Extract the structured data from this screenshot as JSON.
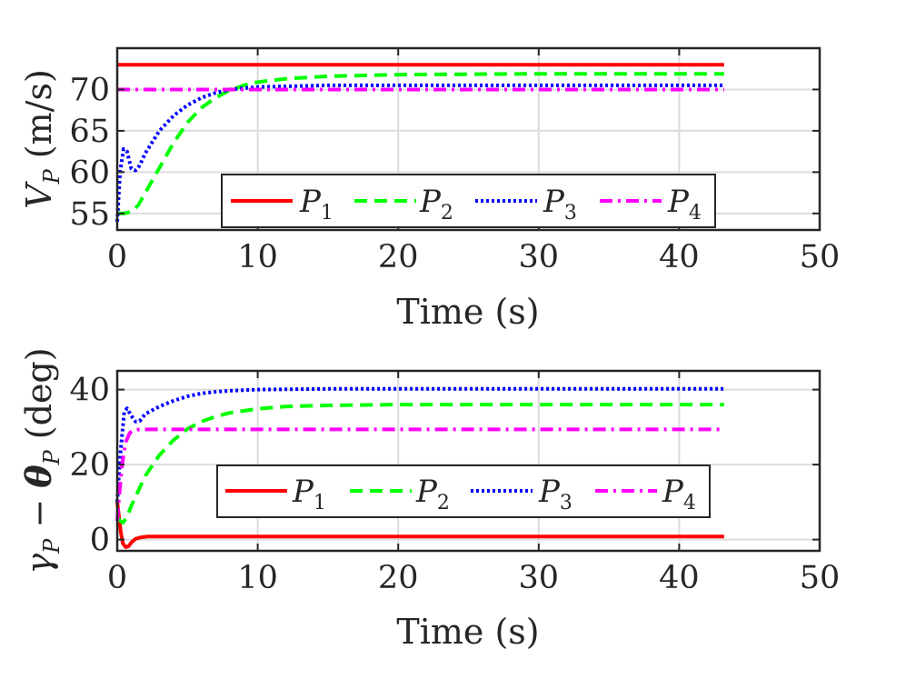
{
  "colors": {
    "P1": "#ff0000",
    "P2": "#00ff00",
    "P3": "#0000ff",
    "P4": "#ff00ff",
    "axis": "#262626",
    "grid": "#dcdcdc"
  },
  "chart_data": [
    {
      "type": "line",
      "xlabel": "Time (s)",
      "ylabel": "V_P (m/s)",
      "ylabel_parts": {
        "main": "V",
        "sub": "P",
        "unit": "(m/s)"
      },
      "xlim": [
        0,
        50
      ],
      "ylim": [
        53,
        75
      ],
      "xticks": [
        0,
        10,
        20,
        30,
        40,
        50
      ],
      "yticks": [
        55,
        60,
        65,
        70
      ],
      "grid": true,
      "legend_placement": "bottom-center",
      "series": [
        {
          "name": "P1",
          "label_main": "P",
          "label_sub": "1",
          "color": "#ff0000",
          "dash": "solid",
          "x": [
            0,
            43.2
          ],
          "y": [
            73,
            73
          ]
        },
        {
          "name": "P2",
          "label_main": "P",
          "label_sub": "2",
          "color": "#00ff00",
          "dash": "dashed",
          "x": [
            0,
            0.5,
            1,
            1.5,
            2,
            3,
            4,
            5,
            6,
            7,
            8,
            9,
            10,
            12,
            15,
            20,
            30,
            43.2
          ],
          "y": [
            55,
            55,
            55.2,
            56,
            57.5,
            60.5,
            63.5,
            66,
            67.8,
            69,
            69.9,
            70.5,
            70.9,
            71.3,
            71.6,
            71.8,
            71.9,
            71.9
          ]
        },
        {
          "name": "P3",
          "label_main": "P",
          "label_sub": "3",
          "color": "#0000ff",
          "dash": "dotted",
          "x": [
            0,
            0.2,
            0.45,
            0.7,
            1,
            1.3,
            1.6,
            2,
            3,
            4,
            5,
            6,
            7,
            8,
            10,
            15,
            20,
            43.2
          ],
          "y": [
            54,
            60,
            62.8,
            62.5,
            60.4,
            60.2,
            60.8,
            62.3,
            65,
            66.8,
            68.1,
            69,
            69.6,
            70,
            70.3,
            70.5,
            70.5,
            70.5
          ]
        },
        {
          "name": "P4",
          "label_main": "P",
          "label_sub": "4",
          "color": "#ff00ff",
          "dash": "dashdot",
          "x": [
            0,
            43.2
          ],
          "y": [
            70,
            70
          ]
        }
      ]
    },
    {
      "type": "line",
      "xlabel": "Time (s)",
      "ylabel": "γ_P − θ_P (deg)",
      "ylabel_parts": {
        "g": "γ",
        "gsub": "P",
        "op": " − ",
        "t": "θ",
        "tsub": "P",
        "unit": "(deg)"
      },
      "xlim": [
        0,
        50
      ],
      "ylim": [
        -3,
        45
      ],
      "xticks": [
        0,
        10,
        20,
        30,
        40,
        50
      ],
      "yticks": [
        0,
        20,
        40
      ],
      "grid": true,
      "legend_placement": "center",
      "series": [
        {
          "name": "P1",
          "label_main": "P",
          "label_sub": "1",
          "color": "#ff0000",
          "dash": "solid",
          "x": [
            0,
            0.1,
            0.25,
            0.4,
            0.6,
            0.8,
            1.0,
            1.3,
            1.7,
            2.2,
            3,
            5,
            10,
            43.2
          ],
          "y": [
            10,
            7,
            2,
            -1,
            -2,
            -1.8,
            -0.8,
            0.2,
            0.6,
            0.8,
            0.8,
            0.8,
            0.8,
            0.8
          ]
        },
        {
          "name": "P2",
          "label_main": "P",
          "label_sub": "2",
          "color": "#00ff00",
          "dash": "dashed",
          "x": [
            0,
            0.2,
            0.4,
            0.7,
            1,
            1.5,
            2,
            3,
            4,
            5,
            6,
            7,
            8,
            10,
            12,
            15,
            20,
            43.2
          ],
          "y": [
            6,
            5,
            4.5,
            6,
            9,
            13,
            17,
            22.5,
            26.5,
            29.5,
            31.5,
            32.8,
            33.8,
            34.9,
            35.5,
            35.8,
            36,
            36
          ]
        },
        {
          "name": "P3",
          "label_main": "P",
          "label_sub": "3",
          "color": "#0000ff",
          "dash": "dotted",
          "x": [
            0,
            0.2,
            0.5,
            0.7,
            1,
            1.3,
            1.6,
            2,
            3,
            4,
            5,
            6,
            7,
            8,
            10,
            15,
            20,
            43.2
          ],
          "y": [
            10,
            22,
            34,
            35,
            33,
            31.5,
            31.6,
            33.5,
            35.5,
            37,
            38.2,
            39,
            39.4,
            39.7,
            40,
            40.2,
            40.2,
            40.2
          ]
        },
        {
          "name": "P4",
          "label_main": "P",
          "label_sub": "4",
          "color": "#ff00ff",
          "dash": "dashdot",
          "x": [
            0,
            0.15,
            0.35,
            0.6,
            0.9,
            1.2,
            1.6,
            2,
            3,
            5,
            10,
            43.2
          ],
          "y": [
            5,
            12,
            20,
            26,
            28.5,
            29.2,
            29.4,
            29.4,
            29.4,
            29.4,
            29.4,
            29.4
          ]
        }
      ]
    }
  ]
}
